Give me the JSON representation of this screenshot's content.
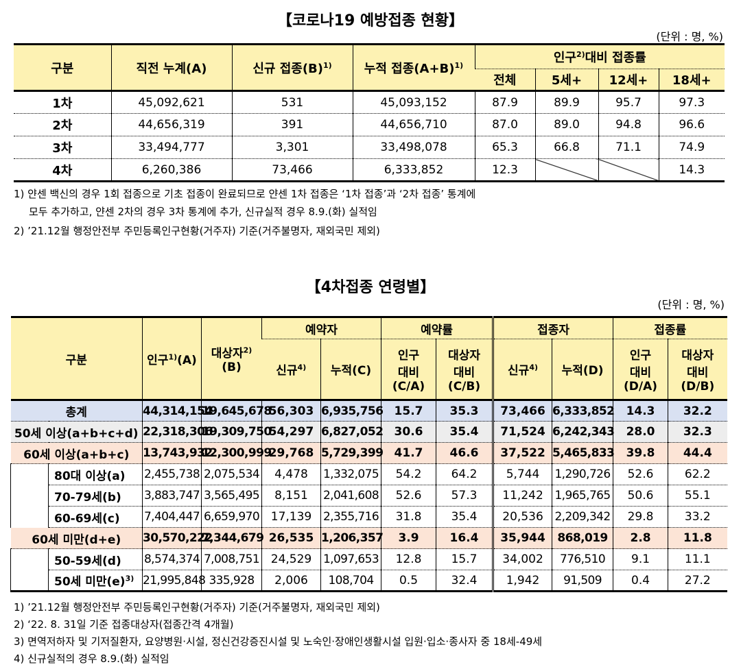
{
  "t1": {
    "title": "【코로나19 예방접종 현황】",
    "unit": "(단위 : 명, %)",
    "headers": {
      "gubun": "구분",
      "prev": "직전 누계(A)",
      "new": "신규 접종(B)",
      "new_sup": "1)",
      "cum": "누적 접종(A+B)",
      "cum_sup": "1)",
      "rate_a": "인구",
      "rate_sup": "2)",
      "rate_b": "대비 접종률",
      "all": "전체",
      "age5": "5세+",
      "age12": "12세+",
      "age18": "18세+"
    },
    "rows": [
      {
        "label": "1차",
        "prev": "45,092,621",
        "new": "531",
        "cum": "45,093,152",
        "all": "87.9",
        "a5": "89.9",
        "a12": "95.7",
        "a18": "97.3"
      },
      {
        "label": "2차",
        "prev": "44,656,319",
        "new": "391",
        "cum": "44,656,710",
        "all": "87.0",
        "a5": "89.0",
        "a12": "94.8",
        "a18": "96.6"
      },
      {
        "label": "3차",
        "prev": "33,494,777",
        "new": "3,301",
        "cum": "33,498,078",
        "all": "65.3",
        "a5": "66.8",
        "a12": "71.1",
        "a18": "74.9"
      },
      {
        "label": "4차",
        "prev": "6,260,386",
        "new": "73,466",
        "cum": "6,333,852",
        "all": "12.3",
        "a5": "",
        "a12": "",
        "a18": "14.3"
      }
    ],
    "notes": [
      "1) 얀센 백신의 경우 1회 접종으로 기초 접종이 완료되므로 얀센 1차 접종은 ‘1차 접종’과 ‘2차 접종’ 통계에",
      "모두 추가하고, 얀센 2차의 경우 3차 통계에 추가, 신규실적 경우 8.9.(화) 실적임",
      "2) ’21.12월 행정안전부 주민등록인구현황(거주자) 기준(거주불명자, 재외국민 제외)"
    ]
  },
  "t2": {
    "title": "【4차접종 연령별】",
    "unit": "(단위 : 명, %)",
    "headers": {
      "gubun": "구분",
      "pop": "인구",
      "pop_sup": "1)",
      "pop_tail": "(A)",
      "target": "대상자",
      "target_sup": "2)",
      "target_tail": "(B)",
      "reserved": "예약자",
      "reserve_rate": "예약률",
      "vaccinated": "접종자",
      "vac_rate": "접종률",
      "new": "신규",
      "new_sup": "4)",
      "cum_c": "누적(C)",
      "cum_d": "누적(D)",
      "ca_1": "인구",
      "ca_2": "대비",
      "ca_3": "(C/A)",
      "cb_1": "대상자",
      "cb_2": "대비",
      "cb_3": "(C/B)",
      "da_1": "인구",
      "da_2": "대비",
      "da_3": "(D/A)",
      "db_1": "대상자",
      "db_2": "대비",
      "db_3": "(D/B)"
    },
    "rows": [
      {
        "label": "총계",
        "pop": "44,314,154",
        "target": "19,645,678",
        "rnew": "56,303",
        "rcum": "6,935,756",
        "ca": "15.7",
        "cb": "35.3",
        "vnew": "73,466",
        "vcum": "6,333,852",
        "da": "14.3",
        "db": "32.2"
      },
      {
        "label": "50세 이상(a+b+c+d)",
        "pop": "22,318,306",
        "target": "19,309,750",
        "rnew": "54,297",
        "rcum": "6,827,052",
        "ca": "30.6",
        "cb": "35.4",
        "vnew": "71,524",
        "vcum": "6,242,343",
        "da": "28.0",
        "db": "32.3"
      },
      {
        "label": "60세 이상(a+b+c)",
        "pop": "13,743,932",
        "target": "12,300,999",
        "rnew": "29,768",
        "rcum": "5,729,399",
        "ca": "41.7",
        "cb": "46.6",
        "vnew": "37,522",
        "vcum": "5,465,833",
        "da": "39.8",
        "db": "44.4"
      },
      {
        "label": "80대 이상(a)",
        "pop": "2,455,738",
        "target": "2,075,534",
        "rnew": "4,478",
        "rcum": "1,332,075",
        "ca": "54.2",
        "cb": "64.2",
        "vnew": "5,744",
        "vcum": "1,290,726",
        "da": "52.6",
        "db": "62.2"
      },
      {
        "label": "70-79세(b)",
        "pop": "3,883,747",
        "target": "3,565,495",
        "rnew": "8,151",
        "rcum": "2,041,608",
        "ca": "52.6",
        "cb": "57.3",
        "vnew": "11,242",
        "vcum": "1,965,765",
        "da": "50.6",
        "db": "55.1"
      },
      {
        "label": "60-69세(c)",
        "pop": "7,404,447",
        "target": "6,659,970",
        "rnew": "17,139",
        "rcum": "2,355,716",
        "ca": "31.8",
        "cb": "35.4",
        "vnew": "20,536",
        "vcum": "2,209,342",
        "da": "29.8",
        "db": "33.2"
      },
      {
        "label": "60세 미만(d+e)",
        "pop": "30,570,222",
        "target": "7,344,679",
        "rnew": "26,535",
        "rcum": "1,206,357",
        "ca": "3.9",
        "cb": "16.4",
        "vnew": "35,944",
        "vcum": "868,019",
        "da": "2.8",
        "db": "11.8"
      },
      {
        "label": "50-59세(d)",
        "pop": "8,574,374",
        "target": "7,008,751",
        "rnew": "24,529",
        "rcum": "1,097,653",
        "ca": "12.8",
        "cb": "15.7",
        "vnew": "34,002",
        "vcum": "776,510",
        "da": "9.1",
        "db": "11.1"
      },
      {
        "label": "50세 미만(e)",
        "label_sup": "3)",
        "pop": "21,995,848",
        "target": "335,928",
        "rnew": "2,006",
        "rcum": "108,704",
        "ca": "0.5",
        "cb": "32.4",
        "vnew": "1,942",
        "vcum": "91,509",
        "da": "0.4",
        "db": "27.2"
      }
    ],
    "notes": [
      "1) ’21.12월 행정안전부 주민등록인구현황(거주자) 기준(거주불명자, 재외국민 제외)",
      "2) ‘22. 8. 31일 기준 접종대상자(접종간격 4개월)",
      "3) 면역저하자 및 기저질환자, 요양병원·시설, 정신건강증진시설 및 노숙인·장애인생활시설 입원·입소·종사자 중 18세-49세",
      "4) 신규실적의 경우 8.9.(화) 실적임"
    ]
  }
}
